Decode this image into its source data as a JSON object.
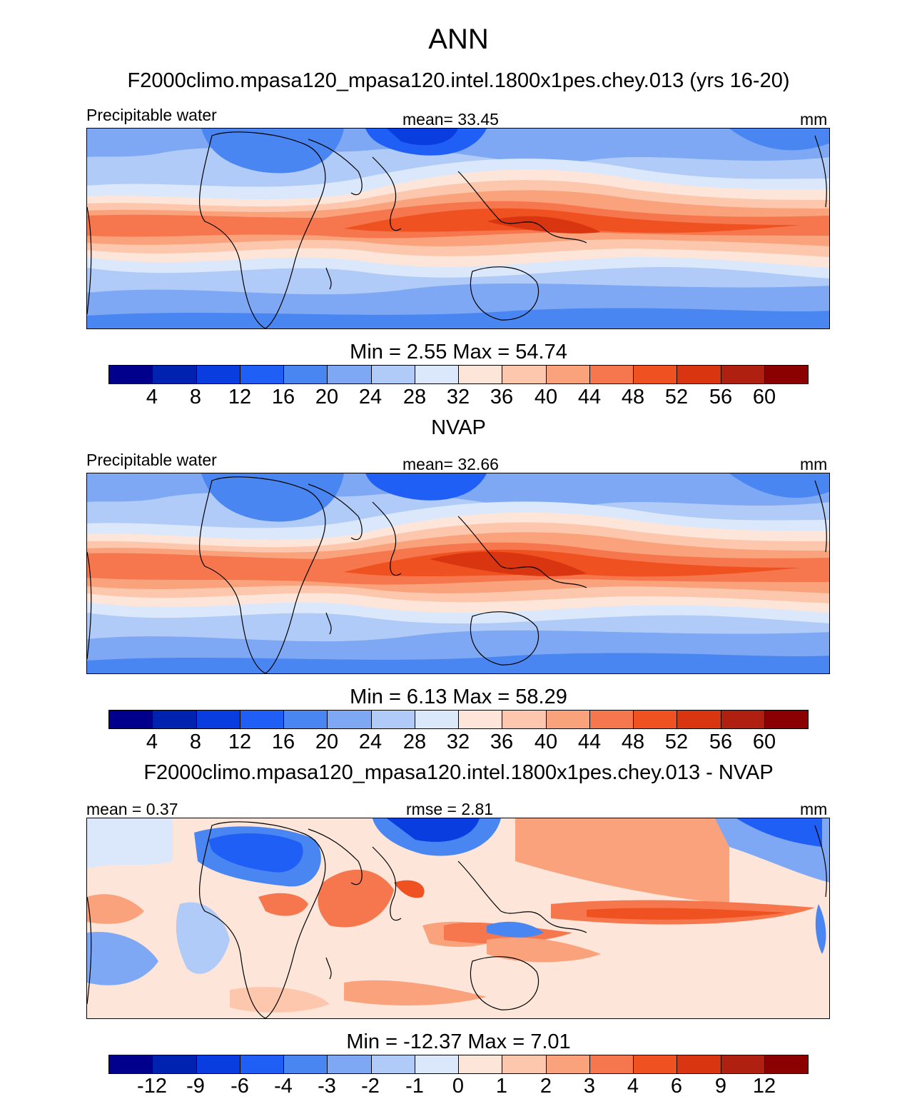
{
  "title": "ANN",
  "units": "mm",
  "colors": {
    "precip_palette": [
      "#00008c",
      "#0022b0",
      "#0a3de0",
      "#1f5ff6",
      "#4a86f2",
      "#7ea8f4",
      "#b0cbf7",
      "#dbe8fb",
      "#fde6d9",
      "#fcc7ac",
      "#f9a27c",
      "#f6774e",
      "#f05120",
      "#d93510",
      "#b02010",
      "#8b0000"
    ],
    "diff_palette": [
      "#00008c",
      "#0022b0",
      "#0a3de0",
      "#1f5ff6",
      "#4a86f2",
      "#7ea8f4",
      "#b0cbf7",
      "#dbe8fb",
      "#fde6d9",
      "#fcc7ac",
      "#f9a27c",
      "#f6774e",
      "#f05120",
      "#d93510",
      "#b02010",
      "#8b0000"
    ]
  },
  "panels": [
    {
      "title": "F2000climo.mpasa120_mpasa120.intel.1800x1pes.chey.013 (yrs 16-20)",
      "left_label": "Precipitable water",
      "center_label": "mean=  33.45",
      "right_label": "mm",
      "minmax": "Min =   2.55 Max =  54.74",
      "ticks": [
        "4",
        "8",
        "12",
        "16",
        "20",
        "24",
        "28",
        "32",
        "36",
        "40",
        "44",
        "48",
        "52",
        "56",
        "60"
      ]
    },
    {
      "title": "NVAP",
      "left_label": "Precipitable water",
      "center_label": "mean=  32.66",
      "right_label": "mm",
      "minmax": "Min =   6.13 Max =  58.29",
      "ticks": [
        "4",
        "8",
        "12",
        "16",
        "20",
        "24",
        "28",
        "32",
        "36",
        "40",
        "44",
        "48",
        "52",
        "56",
        "60"
      ]
    },
    {
      "title": "F2000climo.mpasa120_mpasa120.intel.1800x1pes.chey.013 - NVAP",
      "left_label": "mean =   0.37",
      "center_label": "rmse =   2.81",
      "right_label": "mm",
      "minmax": "Min = -12.37 Max =   7.01",
      "ticks": [
        "-12",
        "-9",
        "-6",
        "-4",
        "-3",
        "-2",
        "-1",
        "0",
        "1",
        "2",
        "3",
        "4",
        "6",
        "9",
        "12"
      ]
    }
  ]
}
